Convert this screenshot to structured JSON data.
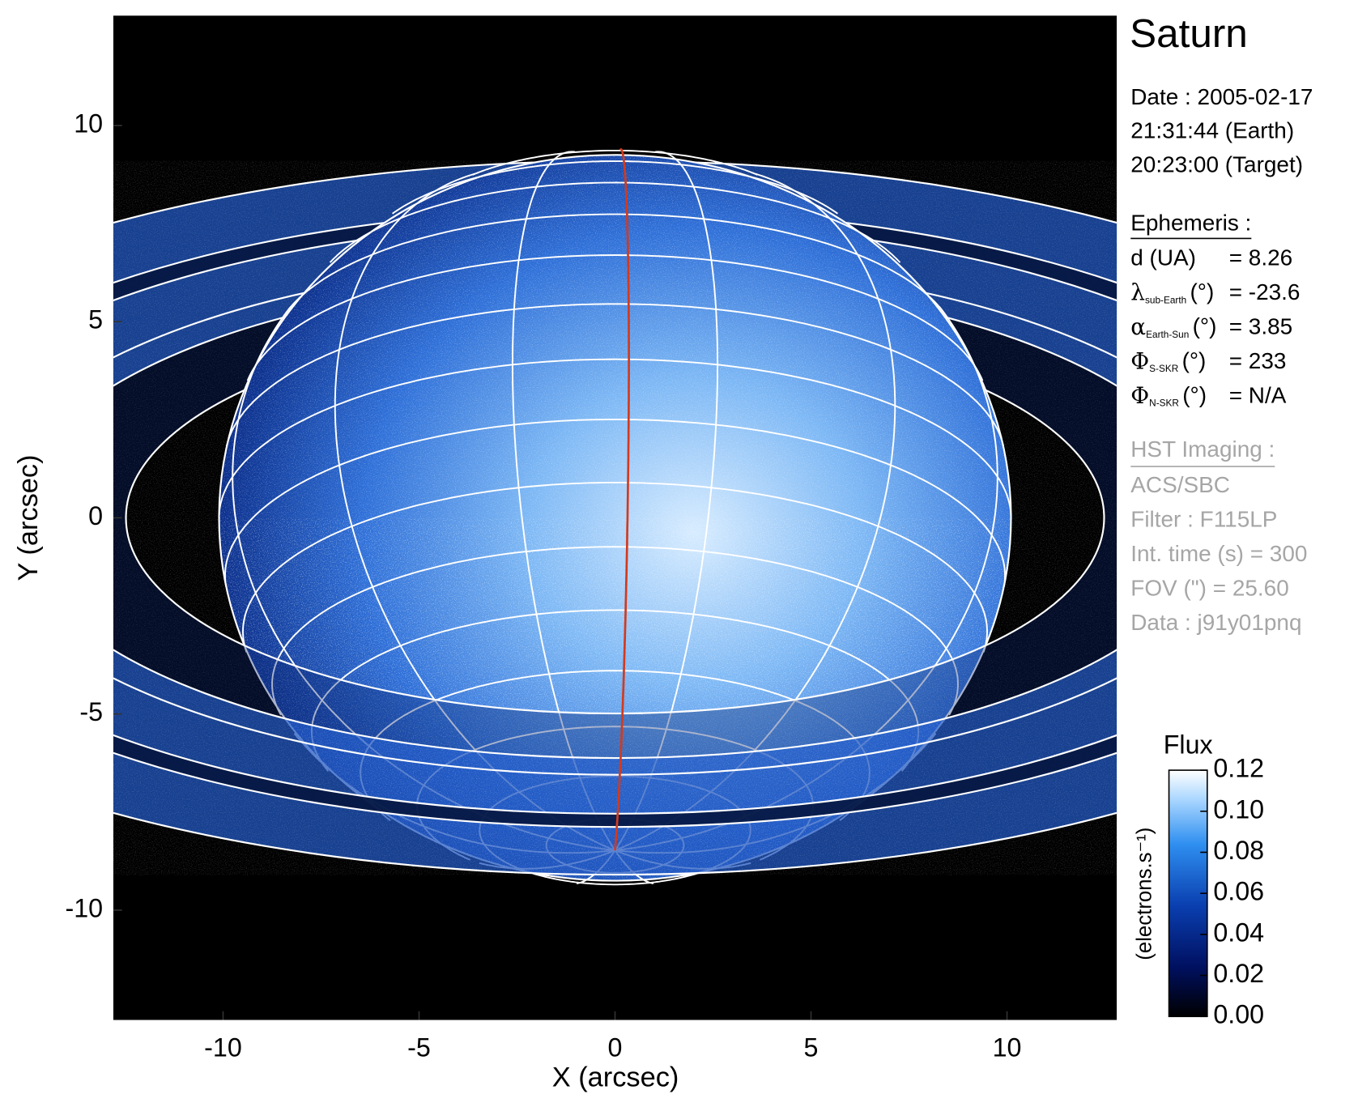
{
  "chart_data": {
    "type": "image",
    "title": "Saturn",
    "xlabel": "X (arcsec)",
    "ylabel": "Y (arcsec)",
    "xlim": [
      -12.8,
      12.8
    ],
    "ylim": [
      -12.8,
      12.8
    ],
    "xticks": [
      -10,
      -5,
      0,
      5,
      10
    ],
    "yticks": [
      -10,
      -5,
      0,
      5,
      10
    ],
    "colorbar": {
      "title": "Flux",
      "label": "(electrons.s⁻¹)",
      "lim": [
        0,
        0.12
      ],
      "ticks": [
        {
          "value": 0,
          "label": "0.00"
        },
        0.02,
        0.04,
        0.06,
        0.08,
        {
          "value": 0.1,
          "label": "0.10"
        },
        0.12
      ]
    },
    "info": {
      "date": [
        "Date : 2005-02-17",
        "21:31:44 (Earth)",
        "20:23:00 (Target)"
      ],
      "ephemeris_title": "Ephemeris :",
      "ephemeris": [
        {
          "label": "d (UA)",
          "value": "= 8.26"
        },
        {
          "symbol": "λ",
          "sub": "sub-Earth",
          "label": "(°)",
          "value": "= -23.6"
        },
        {
          "symbol": "α",
          "sub": "Earth-Sun",
          "label": "(°)",
          "value": "= 3.85"
        },
        {
          "symbol": "Φ",
          "sub": "S-SKR",
          "label": "(°)",
          "value": "= 233"
        },
        {
          "symbol": "Φ",
          "sub": "N-SKR",
          "label": "(°)",
          "value": "= N/A"
        }
      ],
      "hst_title": "HST Imaging :",
      "hst": [
        "ACS/SBC",
        "Filter : F115LP",
        "Int. time (s) = 300",
        "FOV (\") = 25.60",
        "Data : j91y01pnq"
      ]
    }
  }
}
